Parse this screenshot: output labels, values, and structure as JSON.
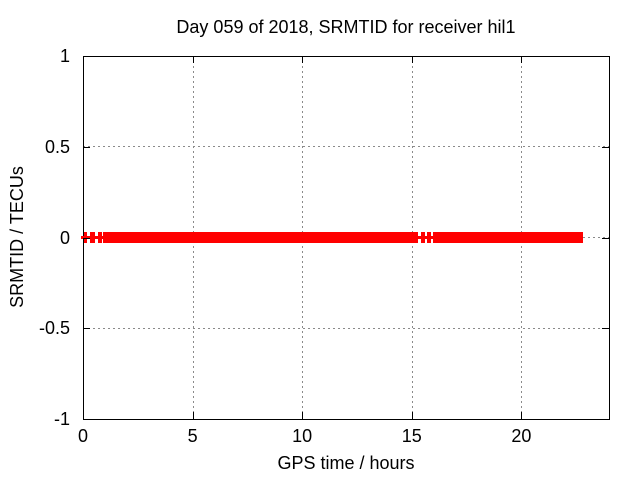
{
  "window": {
    "background": "#ffffff",
    "text_color": "#000000"
  },
  "chart_data": {
    "type": "scatter",
    "title": "Day 059 of 2018, SRMTID for receiver hil1",
    "xlabel": "GPS time / hours",
    "ylabel": "SRMTID / TECUs",
    "xlim": [
      0,
      24
    ],
    "ylim": [
      -1,
      1
    ],
    "xticks": [
      0,
      5,
      10,
      15,
      20
    ],
    "xtick_labels": [
      "0",
      "5",
      "10",
      "15",
      "20"
    ],
    "yticks": [
      1,
      0.5,
      0,
      -0.5,
      -1
    ],
    "ytick_labels": [
      "1",
      "0.5",
      "0",
      "-0.5",
      "-1"
    ],
    "grid": true,
    "grid_style": "dotted",
    "grid_color": "#8a8a8a",
    "border_color": "#000000",
    "legend": "none",
    "marker": "plus",
    "series": [
      {
        "name": "SRMTID",
        "color": "#ff0000",
        "y_value": 0,
        "x_segments_hours": [
          [
            0.03,
            0.19
          ],
          [
            0.31,
            0.56
          ],
          [
            0.67,
            0.85
          ],
          [
            0.9,
            15.27
          ],
          [
            15.41,
            15.61
          ],
          [
            15.7,
            15.88
          ],
          [
            15.98,
            22.82
          ]
        ]
      }
    ]
  }
}
